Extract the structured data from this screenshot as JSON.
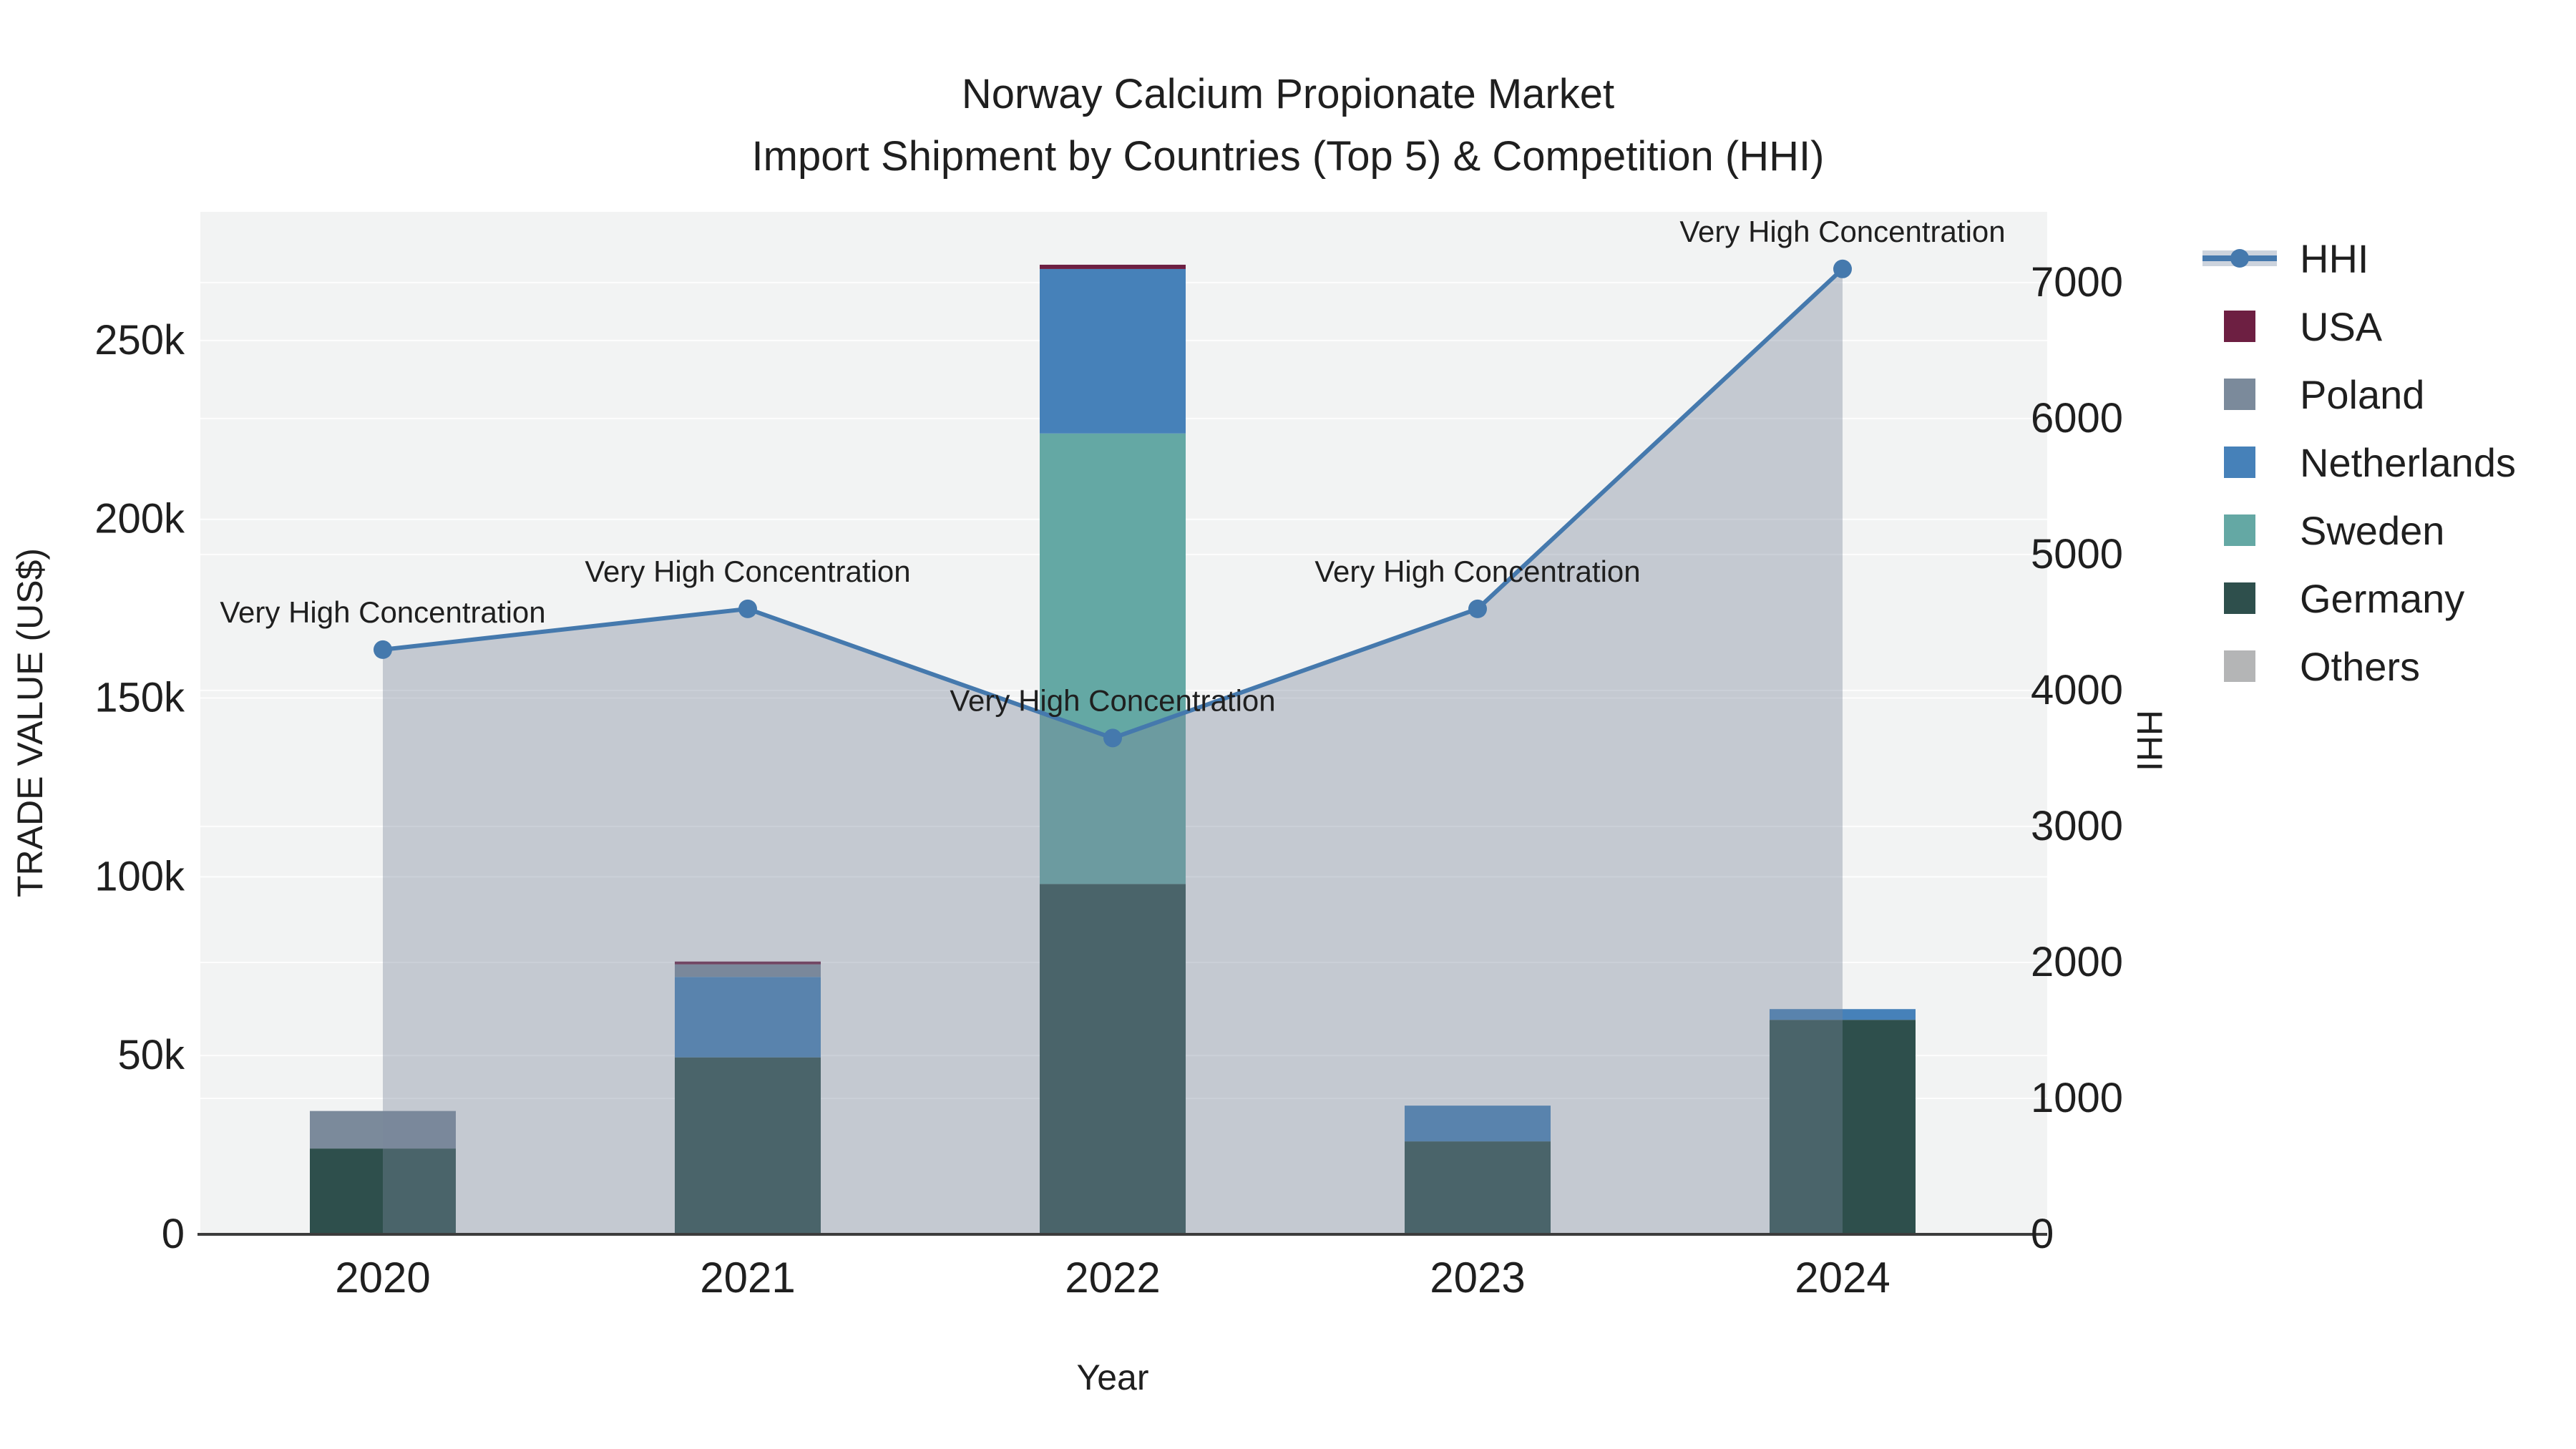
{
  "title": {
    "line1": "Norway Calcium Propionate Market",
    "line2": "Import Shipment by Countries (Top 5) & Competition (HHI)"
  },
  "axes": {
    "x_title": "Year",
    "y_left_title": "TRADE VALUE (US$)",
    "y_right_title": "HHI"
  },
  "legend": {
    "items": [
      {
        "label": "HHI",
        "type": "line-marker",
        "color": "#4579ad",
        "band_color": "#ccd3dd"
      },
      {
        "label": "USA",
        "type": "swatch",
        "color": "#6d1f42"
      },
      {
        "label": "Poland",
        "type": "swatch",
        "color": "#7b8a9b"
      },
      {
        "label": "Netherlands",
        "type": "swatch",
        "color": "#4681b9"
      },
      {
        "label": "Sweden",
        "type": "swatch",
        "color": "#64a8a4"
      },
      {
        "label": "Germany",
        "type": "swatch",
        "color": "#2e4f4c"
      },
      {
        "label": "Others",
        "type": "swatch",
        "color": "#b4b5b6"
      }
    ]
  },
  "chart_data": {
    "type": "bar",
    "subtype": "stacked-bars-left-axis + line-with-area-right-axis",
    "title": "Norway Calcium Propionate Market",
    "subtitle": "Import Shipment by Countries (Top 5) & Competition (HHI)",
    "xlabel": "Year",
    "ylabel": "TRADE VALUE (US$)",
    "y2label": "HHI",
    "categories": [
      "2020",
      "2021",
      "2022",
      "2023",
      "2024"
    ],
    "series": [
      {
        "name": "Germany",
        "axis": "left",
        "color": "#2e4f4c",
        "values": [
          24000,
          49500,
          98000,
          26000,
          60000
        ]
      },
      {
        "name": "Sweden",
        "axis": "left",
        "color": "#64a8a4",
        "values": [
          0,
          0,
          126000,
          0,
          0
        ]
      },
      {
        "name": "Netherlands",
        "axis": "left",
        "color": "#4681b9",
        "values": [
          0,
          22500,
          46000,
          10000,
          3000
        ]
      },
      {
        "name": "Poland",
        "axis": "left",
        "color": "#7b8a9b",
        "values": [
          10500,
          3500,
          0,
          0,
          0
        ]
      },
      {
        "name": "USA",
        "axis": "left",
        "color": "#6d1f42",
        "values": [
          0,
          800,
          1200,
          0,
          0
        ]
      },
      {
        "name": "Others",
        "axis": "left",
        "color": "#b4b5b6",
        "values": [
          0,
          0,
          0,
          0,
          0
        ]
      }
    ],
    "line_series": {
      "name": "HHI",
      "axis": "right",
      "color": "#4579ad",
      "area_fill": "rgba(120,134,156,0.38)",
      "values": [
        4300,
        4600,
        3650,
        4600,
        7100
      ]
    },
    "annotations": [
      "Very High Concentration",
      "Very High Concentration",
      "Very High Concentration",
      "Very High Concentration",
      "Very High Concentration"
    ],
    "y_left": {
      "range": [
        0,
        286000
      ],
      "ticks": [
        0,
        50000,
        100000,
        150000,
        200000,
        250000
      ],
      "tick_labels": [
        "0",
        "50k",
        "100k",
        "150k",
        "200k",
        "250k"
      ]
    },
    "y_right": {
      "range": [
        0,
        7520
      ],
      "ticks": [
        0,
        1000,
        2000,
        3000,
        4000,
        5000,
        6000,
        7000
      ],
      "tick_labels": [
        "0",
        "1000",
        "2000",
        "3000",
        "4000",
        "5000",
        "6000",
        "7000"
      ]
    },
    "legend_position": "right",
    "grid": true,
    "styles": {
      "plot_bg": "#f2f3f3",
      "grid_color": "#ffffff",
      "axis_line_color": "#3c3c3c",
      "text_color": "#1f1f1f",
      "annotation_color": "#1f1f1f"
    }
  }
}
